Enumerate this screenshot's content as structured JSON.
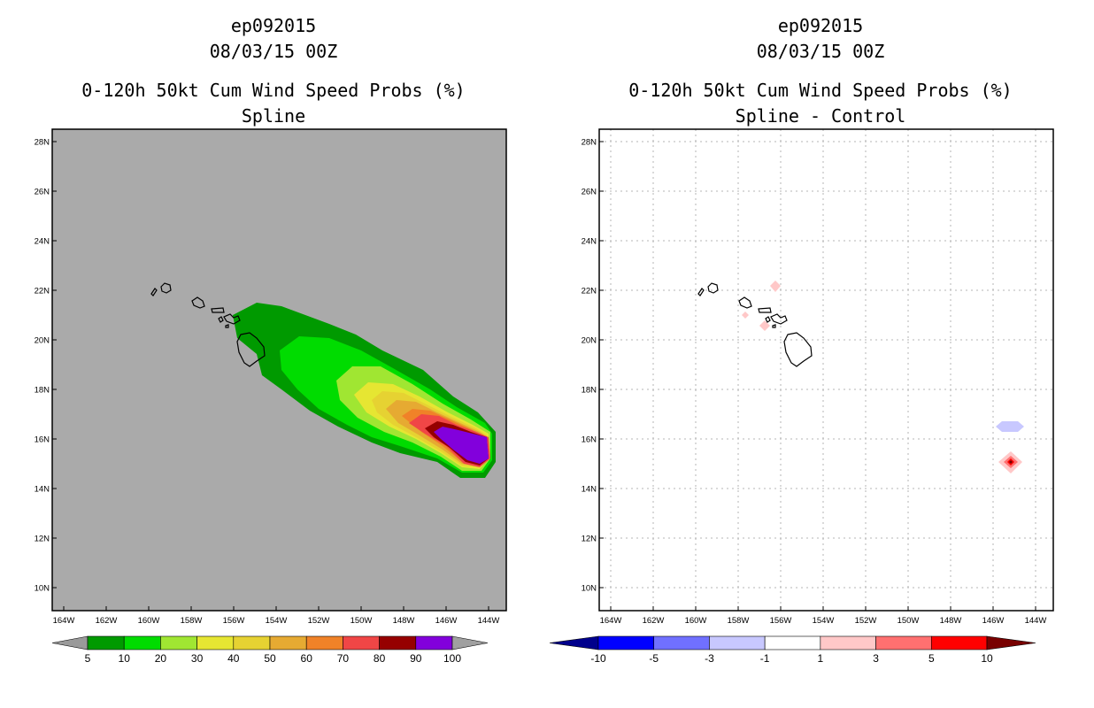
{
  "left_panel": {
    "storm_id": "ep092015",
    "datetime": "08/03/15 00Z",
    "product": "0-120h 50kt Cum Wind Speed Probs (%)",
    "subtitle": "Spline",
    "colorbar": {
      "labels": [
        "5",
        "10",
        "20",
        "30",
        "40",
        "50",
        "60",
        "70",
        "80",
        "90",
        "100"
      ],
      "colors": [
        "#9a9a9a",
        "#009a00",
        "#00dc00",
        "#a0e632",
        "#e6e632",
        "#e6d232",
        "#e6aa32",
        "#f08228",
        "#f04646",
        "#960000",
        "#8200dc",
        "#a0a0a0"
      ]
    },
    "background_color": "#aaaaaa"
  },
  "right_panel": {
    "storm_id": "ep092015",
    "datetime": "08/03/15 00Z",
    "product": "0-120h 50kt Cum Wind Speed Probs (%)",
    "subtitle": "Spline - Control",
    "colorbar": {
      "labels": [
        "-10",
        "-5",
        "-3",
        "-1",
        "1",
        "3",
        "5",
        "10"
      ],
      "colors": [
        "#00008c",
        "#0000ff",
        "#7070ff",
        "#c8c8ff",
        "#ffffff",
        "#ffc8c8",
        "#ff7070",
        "#ff0000",
        "#780000"
      ]
    }
  },
  "map_axes": {
    "lat_labels": [
      "28N",
      "26N",
      "24N",
      "22N",
      "20N",
      "18N",
      "16N",
      "14N",
      "12N",
      "10N"
    ],
    "lon_labels": [
      "164W",
      "162W",
      "160W",
      "158W",
      "156W",
      "154W",
      "152W",
      "150W",
      "148W",
      "146W",
      "144W"
    ],
    "lat_range": [
      9,
      28.5
    ],
    "lon_range": [
      -165,
      -143.5
    ]
  },
  "chart_data": {
    "type": "heatmap",
    "title": "0-120h 50kt Cum Wind Speed Probs (%)",
    "units": "%",
    "spline_probability_bands": [
      {
        "label": "5-10",
        "min": 5,
        "max": 10
      },
      {
        "label": "10-20",
        "min": 10,
        "max": 20
      },
      {
        "label": "20-30",
        "min": 20,
        "max": 30
      },
      {
        "label": "30-40",
        "min": 30,
        "max": 40
      },
      {
        "label": "40-50",
        "min": 40,
        "max": 50
      },
      {
        "label": "50-60",
        "min": 50,
        "max": 60
      },
      {
        "label": "60-70",
        "min": 60,
        "max": 70
      },
      {
        "label": "70-80",
        "min": 70,
        "max": 80
      },
      {
        "label": "80-90",
        "min": 80,
        "max": 90
      },
      {
        "label": "90-100",
        "min": 90,
        "max": 100
      }
    ],
    "max_probability_center": {
      "lat": 15.5,
      "lon": -145
    },
    "difference_features": [
      {
        "lat": 22.1,
        "lon": -156.6,
        "value_range": "1 to 3"
      },
      {
        "lat": 20.6,
        "lon": -157.1,
        "value_range": "1 to 3"
      },
      {
        "lat": 21.0,
        "lon": -157.9,
        "value_range": "1 to 3"
      },
      {
        "lat": 16.5,
        "lon": -145.1,
        "value_range": "-3 to -1"
      },
      {
        "lat": 15.0,
        "lon": -145.0,
        "value_range": "5 to >10"
      }
    ]
  }
}
